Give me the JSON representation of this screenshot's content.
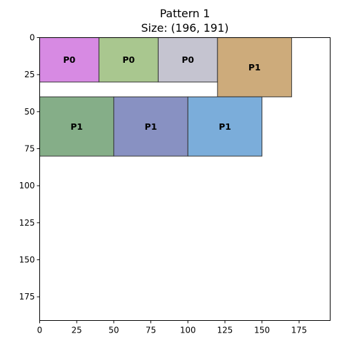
{
  "chart_data": {
    "type": "rectangles",
    "title": "Pattern 1",
    "subtitle": "Size: (196, 191)",
    "xlabel": "",
    "ylabel": "",
    "xlim": [
      0,
      196
    ],
    "ylim": [
      191,
      0
    ],
    "y_inverted": true,
    "grid": false,
    "x_ticks": [
      0,
      25,
      50,
      75,
      100,
      125,
      150,
      175
    ],
    "y_ticks": [
      0,
      25,
      50,
      75,
      100,
      125,
      150,
      175
    ],
    "rectangles": [
      {
        "label": "P0",
        "x": 0,
        "y": 0,
        "w": 40,
        "h": 30,
        "color": "#d78ae3"
      },
      {
        "label": "P0",
        "x": 40,
        "y": 0,
        "w": 40,
        "h": 30,
        "color": "#a9c78f"
      },
      {
        "label": "P0",
        "x": 80,
        "y": 0,
        "w": 40,
        "h": 30,
        "color": "#c5c4d0"
      },
      {
        "label": "P1",
        "x": 120,
        "y": 0,
        "w": 50,
        "h": 40,
        "color": "#cdab7b"
      },
      {
        "label": "P1",
        "x": 0,
        "y": 40,
        "w": 50,
        "h": 40,
        "color": "#85ae88"
      },
      {
        "label": "P1",
        "x": 50,
        "y": 40,
        "w": 50,
        "h": 40,
        "color": "#8891c2"
      },
      {
        "label": "P1",
        "x": 100,
        "y": 40,
        "w": 50,
        "h": 40,
        "color": "#7badda"
      }
    ]
  }
}
